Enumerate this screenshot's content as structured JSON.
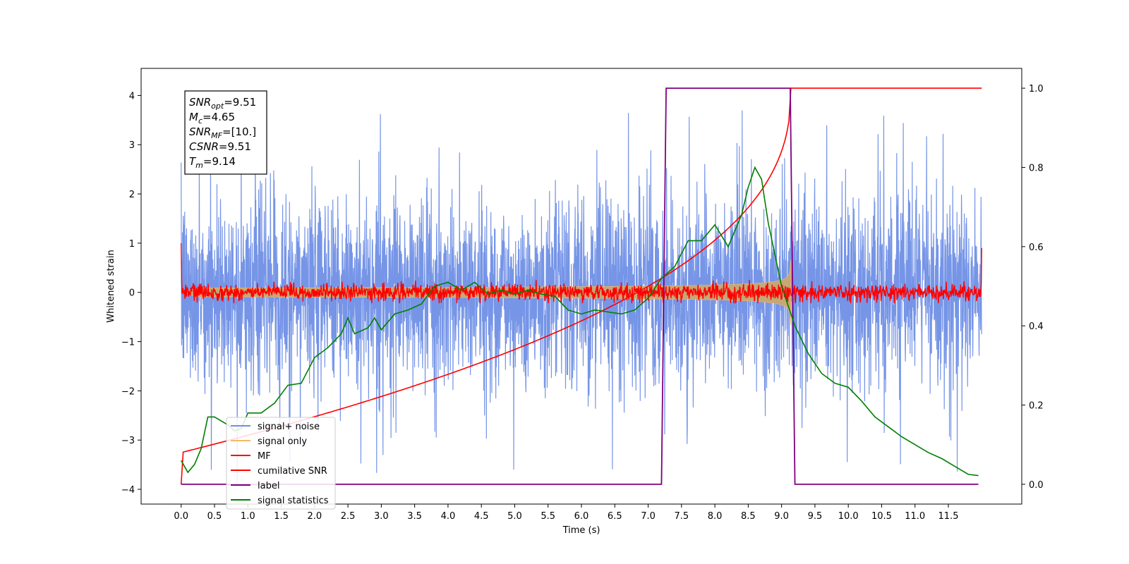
{
  "chart_data": {
    "type": "line",
    "xlabel": "Time (s)",
    "ylabel": "Whitened strain",
    "xlim": [
      -0.6,
      12.6
    ],
    "ylim": [
      -4.3,
      4.55
    ],
    "y2lim": [
      -0.05,
      1.05
    ],
    "xticks": [
      "0.0",
      "0.5",
      "1.0",
      "1.5",
      "2.0",
      "2.5",
      "3.0",
      "3.5",
      "4.0",
      "4.5",
      "5.0",
      "5.5",
      "6.0",
      "6.5",
      "7.0",
      "7.5",
      "8.0",
      "8.5",
      "9.0",
      "9.5",
      "10.0",
      "10.5",
      "11.0",
      "11.5"
    ],
    "yticks": [
      -4,
      -3,
      -2,
      -1,
      0,
      1,
      2,
      3,
      4
    ],
    "y2ticks": [
      0.0,
      0.2,
      0.4,
      0.6,
      0.8,
      1.0
    ],
    "annotation": [
      {
        "sym": "SNR",
        "sub": "opt",
        "value": "=9.51"
      },
      {
        "sym": "M",
        "sub": "c",
        "value": "=4.65"
      },
      {
        "sym": "SNR",
        "sub": "MF",
        "value": "=[10.]"
      },
      {
        "sym": "CSNR",
        "sub": "",
        "value": "=9.51"
      },
      {
        "sym": "T",
        "sub": "m",
        "value": "=9.14"
      }
    ],
    "legend_position": "lower-left",
    "legend": [
      {
        "label": "signal+ noise",
        "color": "#6f8fe6"
      },
      {
        "label": "signal only",
        "color": "#f5b86a"
      },
      {
        "label": "MF",
        "color": "#ff0000"
      },
      {
        "label": "cumilative SNR",
        "color": "#ff0000"
      },
      {
        "label": "label",
        "color": "#800080"
      },
      {
        "label": "signal statistics",
        "color": "#008000"
      }
    ],
    "series": [
      {
        "name": "signal+ noise",
        "axis": "left",
        "color": "#6f8fe6",
        "x_range": [
          0.0,
          12.0
        ],
        "typical_range": [
          -2.3,
          2.3
        ],
        "extreme_range": [
          -3.9,
          4.17
        ]
      },
      {
        "name": "signal only",
        "axis": "left",
        "color": "#c9a86f",
        "type": "chirp envelope",
        "x_range": [
          0.0,
          9.14
        ],
        "peak_amplitude": 0.85,
        "peak_time": 9.14
      },
      {
        "name": "MF",
        "axis": "left",
        "color": "#ff0000",
        "x_range": [
          0.0,
          12.0
        ],
        "typical_range": [
          -0.2,
          0.2
        ],
        "edge_values": [
          1.0,
          0.9
        ]
      },
      {
        "name": "cumilative SNR",
        "axis": "right",
        "x": [
          0.0,
          0.5,
          1.0,
          1.5,
          2.0,
          2.5,
          3.0,
          3.5,
          4.0,
          4.5,
          5.0,
          5.5,
          6.0,
          6.5,
          7.0,
          7.5,
          8.0,
          8.5,
          8.8,
          9.0,
          9.1,
          9.14,
          12.0
        ],
        "values": [
          0.0,
          0.095,
          0.118,
          0.138,
          0.158,
          0.18,
          0.2,
          0.222,
          0.245,
          0.27,
          0.298,
          0.328,
          0.362,
          0.4,
          0.442,
          0.493,
          0.562,
          0.663,
          0.76,
          0.86,
          0.93,
          1.0,
          1.0
        ]
      },
      {
        "name": "label",
        "axis": "right",
        "x": [
          0.0,
          7.2,
          7.27,
          9.13,
          9.2,
          11.95
        ],
        "values": [
          0.0,
          0.0,
          1.0,
          1.0,
          0.0,
          0.0
        ]
      },
      {
        "name": "signal statistics",
        "axis": "right",
        "x": [
          0.0,
          0.1,
          0.2,
          0.3,
          0.4,
          0.5,
          0.7,
          0.8,
          0.9,
          1.0,
          1.2,
          1.4,
          1.6,
          1.8,
          2.0,
          2.2,
          2.4,
          2.5,
          2.6,
          2.8,
          2.9,
          3.0,
          3.2,
          3.4,
          3.6,
          3.8,
          4.0,
          4.2,
          4.4,
          4.6,
          4.8,
          5.0,
          5.2,
          5.4,
          5.6,
          5.8,
          6.0,
          6.2,
          6.4,
          6.6,
          6.8,
          7.0,
          7.2,
          7.4,
          7.6,
          7.8,
          8.0,
          8.2,
          8.4,
          8.5,
          8.6,
          8.7,
          8.8,
          9.0,
          9.2,
          9.4,
          9.6,
          9.8,
          10.0,
          10.2,
          10.4,
          10.6,
          10.8,
          11.0,
          11.2,
          11.4,
          11.6,
          11.8,
          11.95
        ],
        "values": [
          0.06,
          0.03,
          0.05,
          0.09,
          0.17,
          0.17,
          0.15,
          0.135,
          0.14,
          0.18,
          0.18,
          0.205,
          0.25,
          0.255,
          0.32,
          0.345,
          0.38,
          0.42,
          0.38,
          0.395,
          0.42,
          0.39,
          0.43,
          0.44,
          0.455,
          0.5,
          0.51,
          0.49,
          0.51,
          0.48,
          0.49,
          0.48,
          0.49,
          0.48,
          0.475,
          0.44,
          0.43,
          0.44,
          0.435,
          0.43,
          0.44,
          0.47,
          0.52,
          0.55,
          0.615,
          0.615,
          0.655,
          0.6,
          0.68,
          0.75,
          0.8,
          0.77,
          0.66,
          0.5,
          0.4,
          0.33,
          0.28,
          0.255,
          0.245,
          0.21,
          0.17,
          0.145,
          0.12,
          0.1,
          0.08,
          0.065,
          0.045,
          0.025,
          0.022
        ]
      }
    ]
  }
}
